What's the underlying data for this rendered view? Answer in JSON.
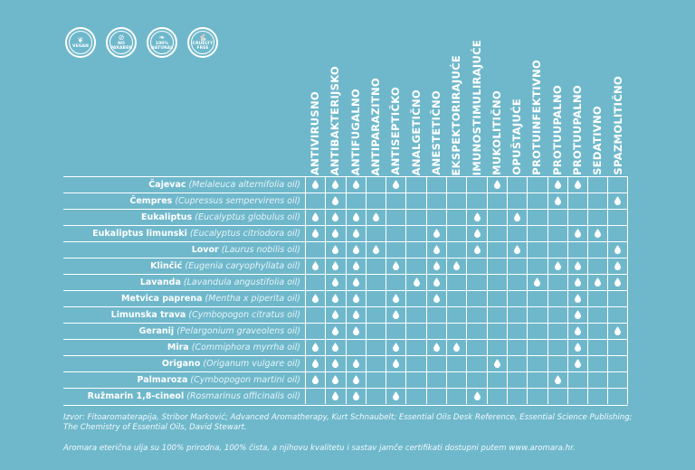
{
  "badges": [
    {
      "icon": "leaf-icon",
      "label": "VEGAN"
    },
    {
      "icon": "no-paraben-icon",
      "label": "NO PARABEN"
    },
    {
      "icon": "leaves-icon",
      "label": "100% NATURAL"
    },
    {
      "icon": "rabbit-icon",
      "label": "CRUELTY FREE"
    }
  ],
  "columns": [
    "ANTIVIRUSNO",
    "ANTIBAKTERIJSKO",
    "ANTIFUGALNO",
    "ANTIPARAZITNO",
    "ANTISEPTIČKO",
    "ANALGETIČNO",
    "ANESTETIČNO",
    "EKSPEKTORIRAJUĆE",
    "IMUNOSTIMULIRAJUĆE",
    "MUKOLITIČNO",
    "OPUŠTAJUĆE",
    "PROTUINFEKTIVNO",
    "PROTUUPALNO",
    "PROTUUPALNO",
    "SEDATIVNO",
    "SPAZMOLITIČNO"
  ],
  "marker_icon": "drop-icon",
  "rows": [
    {
      "name": "Čajevac",
      "latin": "(Melaleuca alternifolia oil)",
      "marks": [
        1,
        2,
        3,
        5,
        10,
        13,
        14
      ]
    },
    {
      "name": "Čempres",
      "latin": "(Cupressus sempervirens oil)",
      "marks": [
        2,
        13,
        16
      ]
    },
    {
      "name": "Eukaliptus",
      "latin": "(Eucalyptus globulus oil)",
      "marks": [
        1,
        2,
        3,
        4,
        9,
        11
      ]
    },
    {
      "name": "Eukaliptus limunski",
      "latin": "(Eucalyptus citriodora oil)",
      "marks": [
        1,
        2,
        3,
        7,
        9,
        14,
        15
      ]
    },
    {
      "name": "Lovor",
      "latin": "(Laurus nobilis oil)",
      "marks": [
        2,
        3,
        4,
        7,
        9,
        11,
        16
      ]
    },
    {
      "name": "Klinčić",
      "latin": "(Eugenia caryophyllata oil)",
      "marks": [
        1,
        2,
        3,
        5,
        7,
        8,
        13,
        14,
        16
      ]
    },
    {
      "name": "Lavanda",
      "latin": "(Lavandula angustifolia oil)",
      "marks": [
        2,
        3,
        6,
        7,
        12,
        14,
        15,
        16
      ]
    },
    {
      "name": "Metvica paprena",
      "latin": "(Mentha x piperita oil)",
      "marks": [
        1,
        2,
        3,
        5,
        7,
        14
      ]
    },
    {
      "name": "Limunska trava",
      "latin": "(Cymbopogon citratus oil)",
      "marks": [
        2,
        3,
        5,
        14
      ]
    },
    {
      "name": "Geranij",
      "latin": "(Pelargonium graveolens oil)",
      "marks": [
        2,
        3,
        14,
        16
      ]
    },
    {
      "name": "Mira",
      "latin": "(Commiphora myrrha oil)",
      "marks": [
        1,
        2,
        5,
        7,
        8,
        14
      ]
    },
    {
      "name": "Origano",
      "latin": "(Origanum vulgare oil)",
      "marks": [
        1,
        2,
        3,
        5,
        10,
        14
      ]
    },
    {
      "name": "Palmaroza",
      "latin": "(Cymbopogon martini oil)",
      "marks": [
        1,
        2,
        3,
        13
      ]
    },
    {
      "name": "Ružmarin 1,8-cineol",
      "latin": "(Rosmarinus officinalis oil)",
      "marks": [
        2,
        3,
        5,
        9
      ]
    }
  ],
  "footer": {
    "source": "Izvor: Fitoaromaterapija, Stribor Marković; Advanced Aromatherapy, Kurt Schnaubelt; Essential Oils Desk Reference, Essential Science Publishing; The Chemistry of Essential Oils, David Stewart.",
    "note": "Aromara eterična ulja su 100% prirodna, 100% čista, a njihovu kvalitetu i sastav jamče certifikati dostupni putem www.aromara.hr."
  },
  "colors": {
    "background": "#6fb8cb",
    "foreground": "#ffffff"
  }
}
